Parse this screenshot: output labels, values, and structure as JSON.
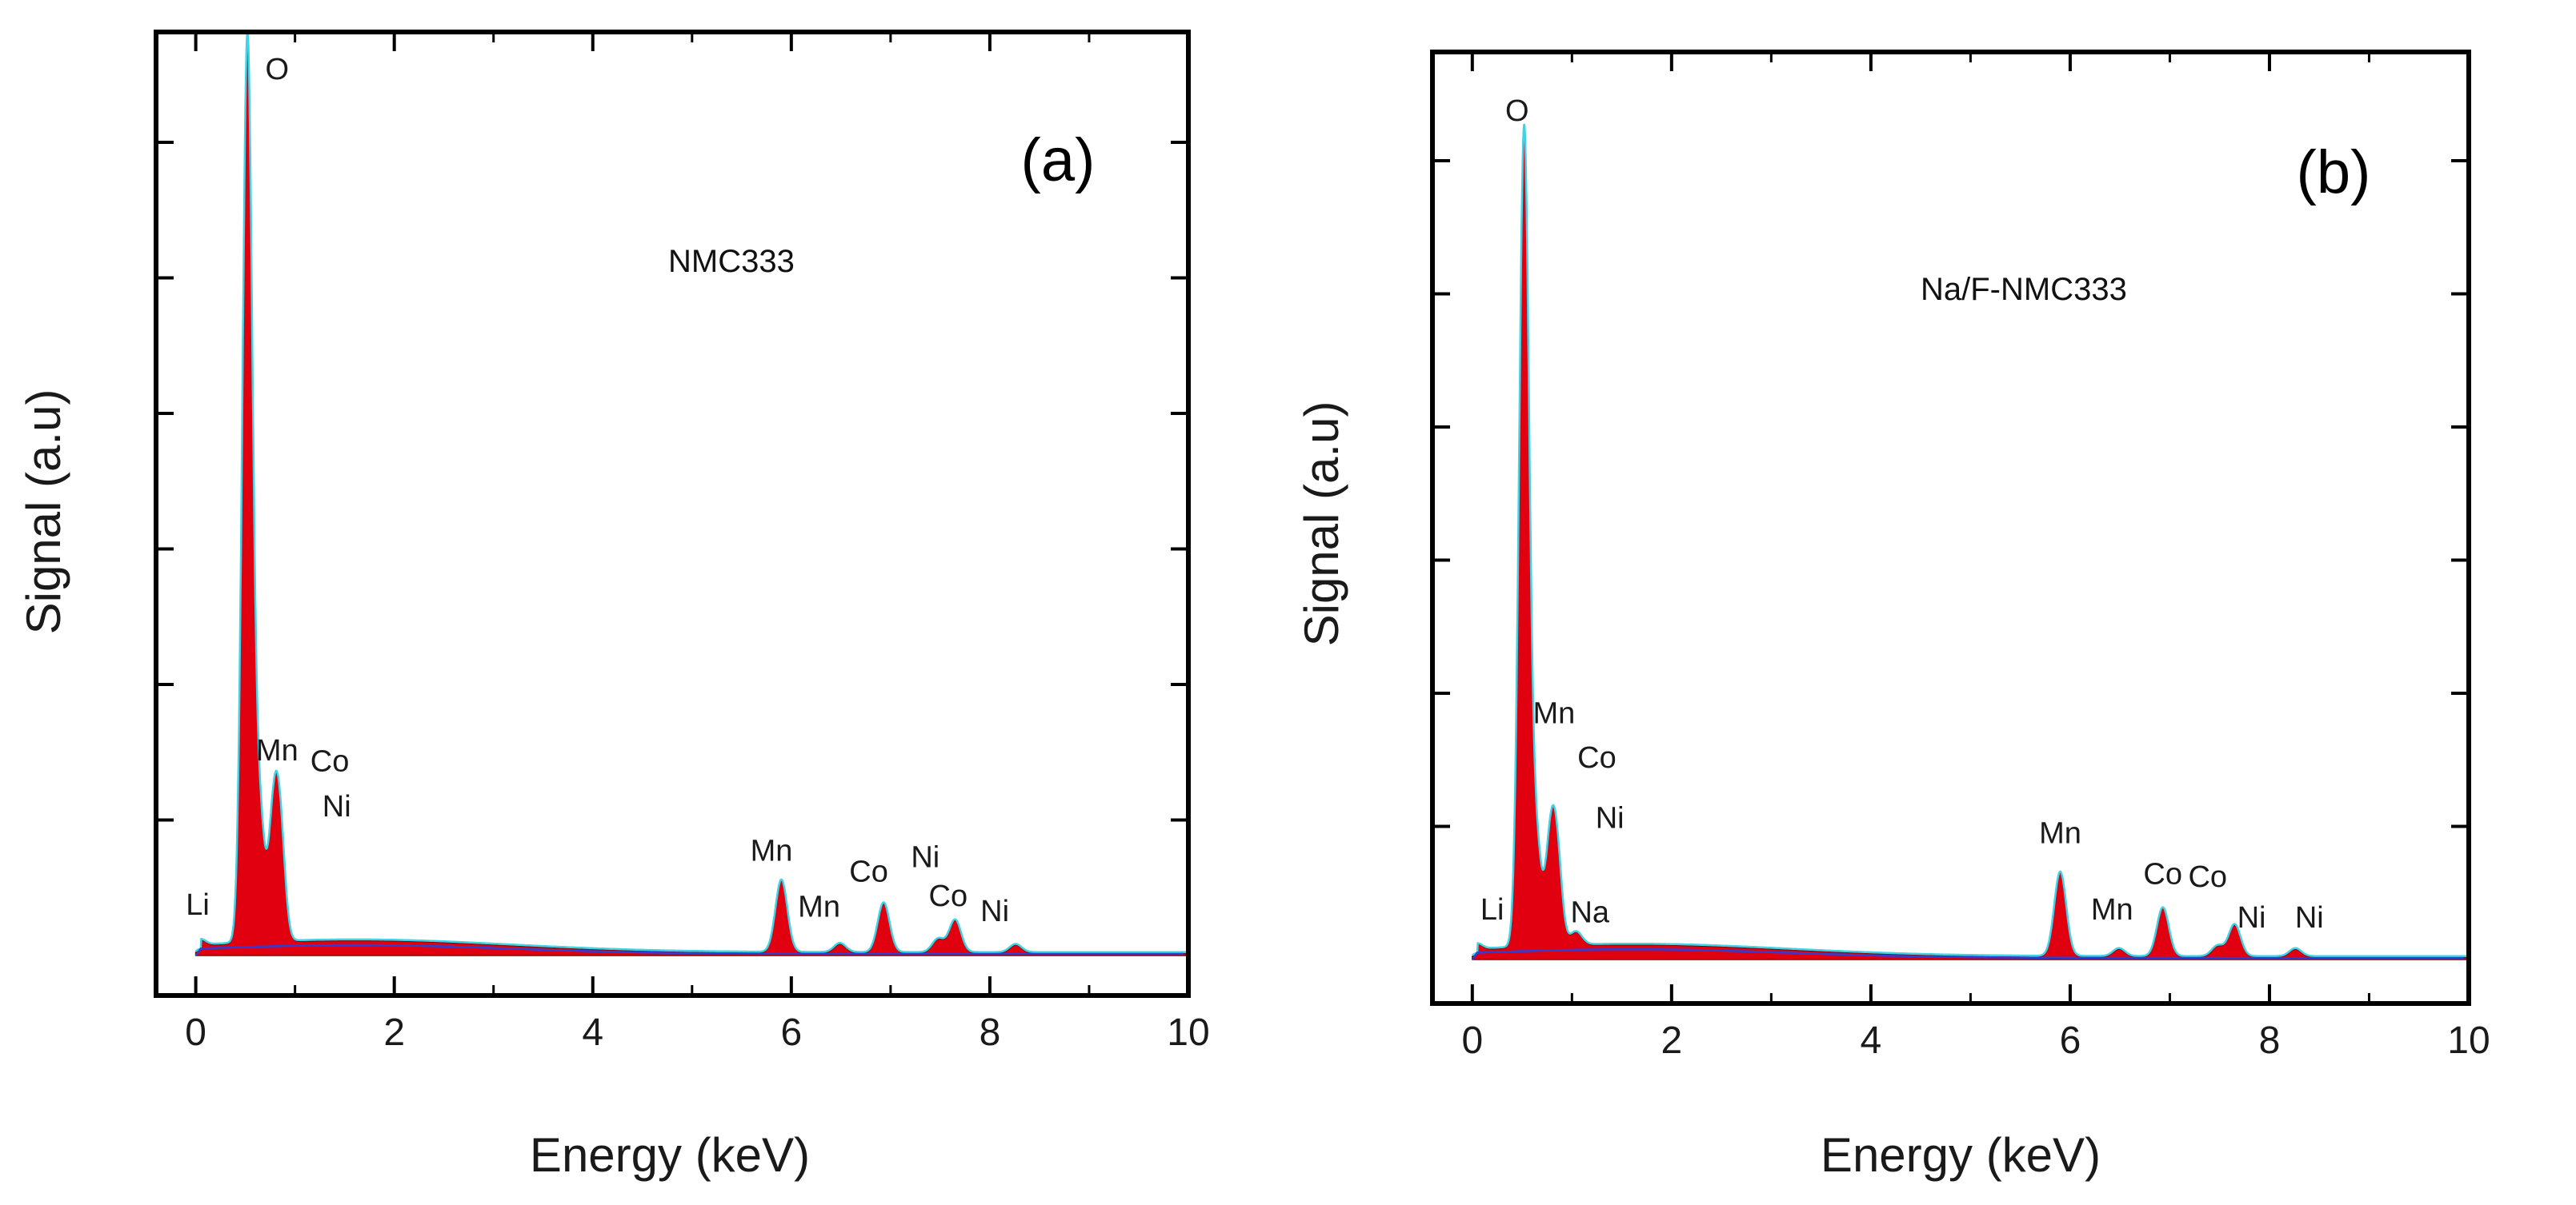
{
  "colors": {
    "fill": "#e0000f",
    "outline": "#8a0000",
    "cyan": "#3fd3e6",
    "blue": "#2b3fd6",
    "axis": "#000000"
  },
  "chart_data": [
    {
      "type": "line",
      "panel_label": "(a)",
      "sample_label": "NMC333",
      "xlabel": "Energy (keV)",
      "ylabel": "Signal (a.u)",
      "xlim": [
        -0.4,
        10
      ],
      "ylim": [
        0,
        100
      ],
      "x_ticks": [
        0,
        2,
        4,
        6,
        8,
        10
      ],
      "x_tick_labels": [
        "0",
        "2",
        "4",
        "6",
        "8",
        "10"
      ],
      "y_ticks": [
        15,
        30,
        45,
        60,
        75,
        90
      ],
      "peaks": [
        {
          "element": "Li",
          "x": 0.05,
          "y": 0.6,
          "label_x": 0.02,
          "label_y": 4.5,
          "show_label": true
        },
        {
          "element": "O",
          "x": 0.52,
          "y": 100,
          "label_x": 0.82,
          "label_y": 97,
          "show_label": true
        },
        {
          "element": "Mn",
          "x": 0.64,
          "y": 14,
          "label_x": 0.82,
          "label_y": 21.6,
          "show_label": true
        },
        {
          "element": "Co",
          "x": 0.78,
          "y": 12.5,
          "label_x": 1.35,
          "label_y": 20.4,
          "show_label": true
        },
        {
          "element": "Ni",
          "x": 0.85,
          "y": 11.5,
          "label_x": 1.42,
          "label_y": 15.4,
          "show_label": true
        },
        {
          "element": "Mn",
          "x": 5.9,
          "y": 8,
          "label_x": 5.8,
          "label_y": 10.5,
          "show_label": true
        },
        {
          "element": "Mn",
          "x": 6.49,
          "y": 1.0,
          "label_x": 6.28,
          "label_y": 4.3,
          "show_label": true
        },
        {
          "element": "Co",
          "x": 6.93,
          "y": 5.5,
          "label_x": 6.78,
          "label_y": 8.2,
          "show_label": true
        },
        {
          "element": "Ni",
          "x": 7.48,
          "y": 1.5,
          "label_x": 7.35,
          "label_y": 9.8,
          "show_label": true
        },
        {
          "element": "Co",
          "x": 7.65,
          "y": 3.6,
          "label_x": 7.58,
          "label_y": 5.5,
          "show_label": true
        },
        {
          "element": "Ni",
          "x": 8.26,
          "y": 0.9,
          "label_x": 8.05,
          "label_y": 3.8,
          "show_label": true
        }
      ]
    },
    {
      "type": "line",
      "panel_label": "(b)",
      "sample_label": "Na/F-NMC333",
      "xlabel": "Energy (keV)",
      "ylabel": "Signal (a.u)",
      "xlim": [
        -0.4,
        10
      ],
      "ylim": [
        0,
        100
      ],
      "x_ticks": [
        0,
        2,
        4,
        6,
        8,
        10
      ],
      "x_tick_labels": [
        "0",
        "2",
        "4",
        "6",
        "8",
        "10"
      ],
      "y_ticks": [
        15,
        30,
        45,
        60,
        75,
        90
      ],
      "peaks": [
        {
          "element": "Li",
          "x": 0.05,
          "y": 0.6,
          "label_x": 0.2,
          "label_y": 4.5,
          "show_label": true
        },
        {
          "element": "O",
          "x": 0.52,
          "y": 92,
          "label_x": 0.45,
          "label_y": 94.5,
          "show_label": true
        },
        {
          "element": "Mn",
          "x": 0.64,
          "y": 11.5,
          "label_x": 0.82,
          "label_y": 26.6,
          "show_label": true
        },
        {
          "element": "Co",
          "x": 0.78,
          "y": 10.5,
          "label_x": 1.25,
          "label_y": 21.6,
          "show_label": true
        },
        {
          "element": "Ni",
          "x": 0.85,
          "y": 9.6,
          "label_x": 1.38,
          "label_y": 14.8,
          "show_label": true
        },
        {
          "element": "Na",
          "x": 1.04,
          "y": 1.5,
          "label_x": 1.18,
          "label_y": 4.2,
          "show_label": true
        },
        {
          "element": "Mn",
          "x": 5.9,
          "y": 9.5,
          "label_x": 5.9,
          "label_y": 13.1,
          "show_label": true
        },
        {
          "element": "Mn",
          "x": 6.49,
          "y": 0.9,
          "label_x": 6.42,
          "label_y": 4.5,
          "show_label": true
        },
        {
          "element": "Co",
          "x": 6.93,
          "y": 5.5,
          "label_x": 6.93,
          "label_y": 8.5,
          "show_label": true
        },
        {
          "element": "Co",
          "x": 7.65,
          "y": 3.6,
          "label_x": 7.38,
          "label_y": 8.2,
          "show_label": true
        },
        {
          "element": "Ni",
          "x": 7.48,
          "y": 1.2,
          "label_x": 7.82,
          "label_y": 3.6,
          "show_label": true
        },
        {
          "element": "Ni",
          "x": 8.26,
          "y": 0.9,
          "label_x": 8.4,
          "label_y": 3.6,
          "show_label": true
        }
      ]
    }
  ]
}
